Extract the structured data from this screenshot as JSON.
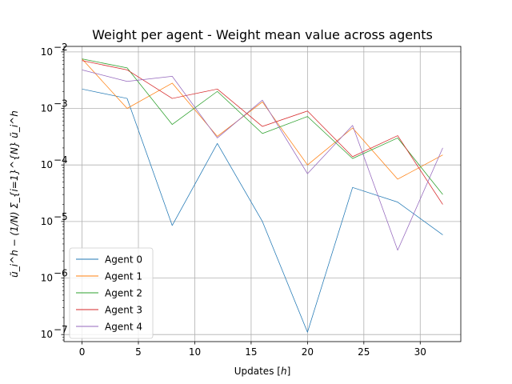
{
  "chart_data": {
    "type": "line",
    "title": "Weight per agent - Weight mean value across agents",
    "xlabel": "Updates [h]",
    "ylabel": "ũ_i^h − (1/N) Σ_{i=1}^{N} ũ_i^h",
    "yscale": "log",
    "xlim": [
      -1.6,
      33.6
    ],
    "ylim": [
      7.5e-08,
      0.0125
    ],
    "grid": true,
    "legend_position": "lower-left",
    "x_ticks": [
      0,
      5,
      10,
      15,
      20,
      25,
      30
    ],
    "x_tick_labels": [
      "0",
      "5",
      "10",
      "15",
      "20",
      "25",
      "30"
    ],
    "y_ticks": [
      1e-07,
      1e-06,
      1e-05,
      0.0001,
      0.001,
      0.01
    ],
    "y_tick_labels": [
      {
        "base": "10",
        "exp": "−7"
      },
      {
        "base": "10",
        "exp": "−6"
      },
      {
        "base": "10",
        "exp": "−5"
      },
      {
        "base": "10",
        "exp": "−4"
      },
      {
        "base": "10",
        "exp": "−3"
      },
      {
        "base": "10",
        "exp": "−2"
      }
    ],
    "x": [
      0,
      4,
      8,
      12,
      16,
      20,
      24,
      28,
      32
    ],
    "series": [
      {
        "name": "Agent 0",
        "color": "#1f77b4",
        "values": [
          0.0022,
          0.0015,
          8.5e-06,
          0.00024,
          1e-05,
          1.1e-07,
          4e-05,
          2.2e-05,
          5.8e-06
        ]
      },
      {
        "name": "Agent 1",
        "color": "#ff7f0e",
        "values": [
          0.0075,
          0.001,
          0.0028,
          0.00032,
          0.0013,
          0.0001,
          0.00045,
          5.6e-05,
          0.00015
        ]
      },
      {
        "name": "Agent 2",
        "color": "#2ca02c",
        "values": [
          0.0075,
          0.0052,
          0.00052,
          0.002,
          0.00036,
          0.00072,
          0.00013,
          0.0003,
          3e-05
        ]
      },
      {
        "name": "Agent 3",
        "color": "#d62728",
        "values": [
          0.007,
          0.0048,
          0.0015,
          0.0022,
          0.00048,
          0.0009,
          0.00014,
          0.00033,
          2e-05
        ]
      },
      {
        "name": "Agent 4",
        "color": "#9467bd",
        "values": [
          0.0048,
          0.003,
          0.0037,
          0.0003,
          0.0014,
          7e-05,
          0.0005,
          3.1e-06,
          0.0002
        ]
      }
    ]
  }
}
